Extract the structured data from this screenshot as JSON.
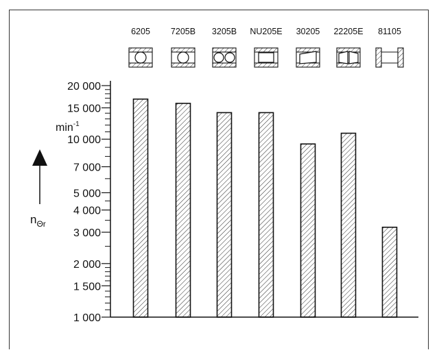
{
  "chart_data": {
    "type": "bar",
    "scale": "log",
    "categories": [
      "6205",
      "7205B",
      "3205B",
      "NU205E",
      "30205",
      "22205E",
      "81105"
    ],
    "values": [
      16800,
      15900,
      14100,
      14100,
      9400,
      10800,
      3200
    ],
    "ylim": [
      1000,
      20000
    ],
    "yticks": [
      {
        "value": 1000,
        "label": "1 000"
      },
      {
        "value": 1500,
        "label": "1 500"
      },
      {
        "value": 2000,
        "label": "2 000"
      },
      {
        "value": 3000,
        "label": "3 000"
      },
      {
        "value": 4000,
        "label": "4 000"
      },
      {
        "value": 5000,
        "label": "5 000"
      },
      {
        "value": 7000,
        "label": "7 000"
      },
      {
        "value": 10000,
        "label": "10 000"
      },
      {
        "value": 15000,
        "label": "15 000"
      },
      {
        "value": 20000,
        "label": "20 000"
      }
    ],
    "minor_ticks": [
      1100,
      1200,
      1300,
      1400,
      1600,
      1700,
      1800,
      1900,
      2500,
      3500,
      4500,
      6000,
      8000,
      9000,
      11000,
      12000,
      13000,
      14000,
      16000,
      17000,
      18000,
      19000
    ],
    "unit_label": "min",
    "unit_exponent": "-1",
    "ylabel_main": "n",
    "ylabel_sub": "Θr",
    "bar_fill": "hatched",
    "colors": {
      "ink": "#111111",
      "frame": "#333333"
    }
  },
  "bearing_icons": [
    "deep-groove-ball-bearing-icon",
    "angular-contact-ball-bearing-icon",
    "double-row-angular-contact-bearing-icon",
    "cylindrical-roller-bearing-icon",
    "tapered-roller-bearing-icon",
    "spherical-roller-bearing-icon",
    "thrust-ball-bearing-icon"
  ]
}
